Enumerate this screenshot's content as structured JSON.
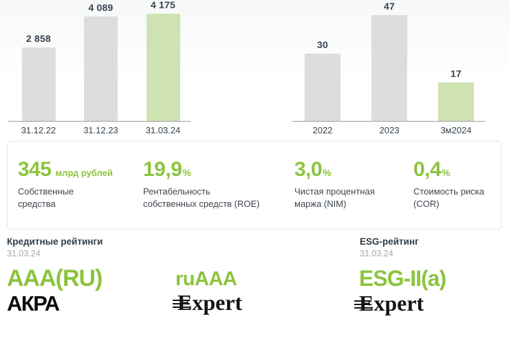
{
  "colors": {
    "accent_green_text": "#8cc43e",
    "accent_green_bar": "#cfe3b2",
    "bar_gray": "#dcddde",
    "chart_text": "#36434e",
    "muted_date": "#a8a8a8"
  },
  "chart_data": [
    {
      "type": "bar",
      "categories": [
        "31.12.22",
        "31.12.23",
        "31.03.24"
      ],
      "values": [
        2858,
        4089,
        4175
      ],
      "value_labels": [
        "2 858",
        "4 089",
        "4 175"
      ],
      "bar_styles": [
        "gray",
        "gray",
        "green"
      ],
      "ylim": [
        0,
        4400
      ],
      "grid": false,
      "legend": false,
      "title": "",
      "xlabel": "",
      "ylabel": ""
    },
    {
      "type": "bar",
      "categories": [
        "2022",
        "2023",
        "3м2024"
      ],
      "values": [
        30,
        47,
        17
      ],
      "value_labels": [
        "30",
        "47",
        "17"
      ],
      "bar_styles": [
        "gray",
        "gray",
        "green"
      ],
      "ylim": [
        0,
        50
      ],
      "grid": false,
      "legend": false,
      "title": "",
      "xlabel": "",
      "ylabel": ""
    }
  ],
  "kpis": [
    {
      "value": "345",
      "unit": "млрд рублей",
      "label": "Собственные\nсредства"
    },
    {
      "value": "19,9",
      "unit": "%",
      "label": "Рентабельность\nсобственных средств (ROE)"
    },
    {
      "value": "3,0",
      "unit": "%",
      "label": "Чистая процентная\nмаржа (NIM)"
    },
    {
      "value": "0,4",
      "unit": "%",
      "label": "Стоимость риска\n(COR)"
    }
  ],
  "ratings": {
    "credit": {
      "heading": "Кредитные рейтинги",
      "date": "31.03.24",
      "items": [
        {
          "grade": "AAA(RU)",
          "agency": "АКРА"
        },
        {
          "grade": "ruAAA",
          "agency": "Expert"
        }
      ]
    },
    "esg": {
      "heading": "ESG-рейтинг",
      "date": "31.03.24",
      "items": [
        {
          "grade": "ESG-II(a)",
          "agency": "Expert"
        }
      ]
    }
  }
}
